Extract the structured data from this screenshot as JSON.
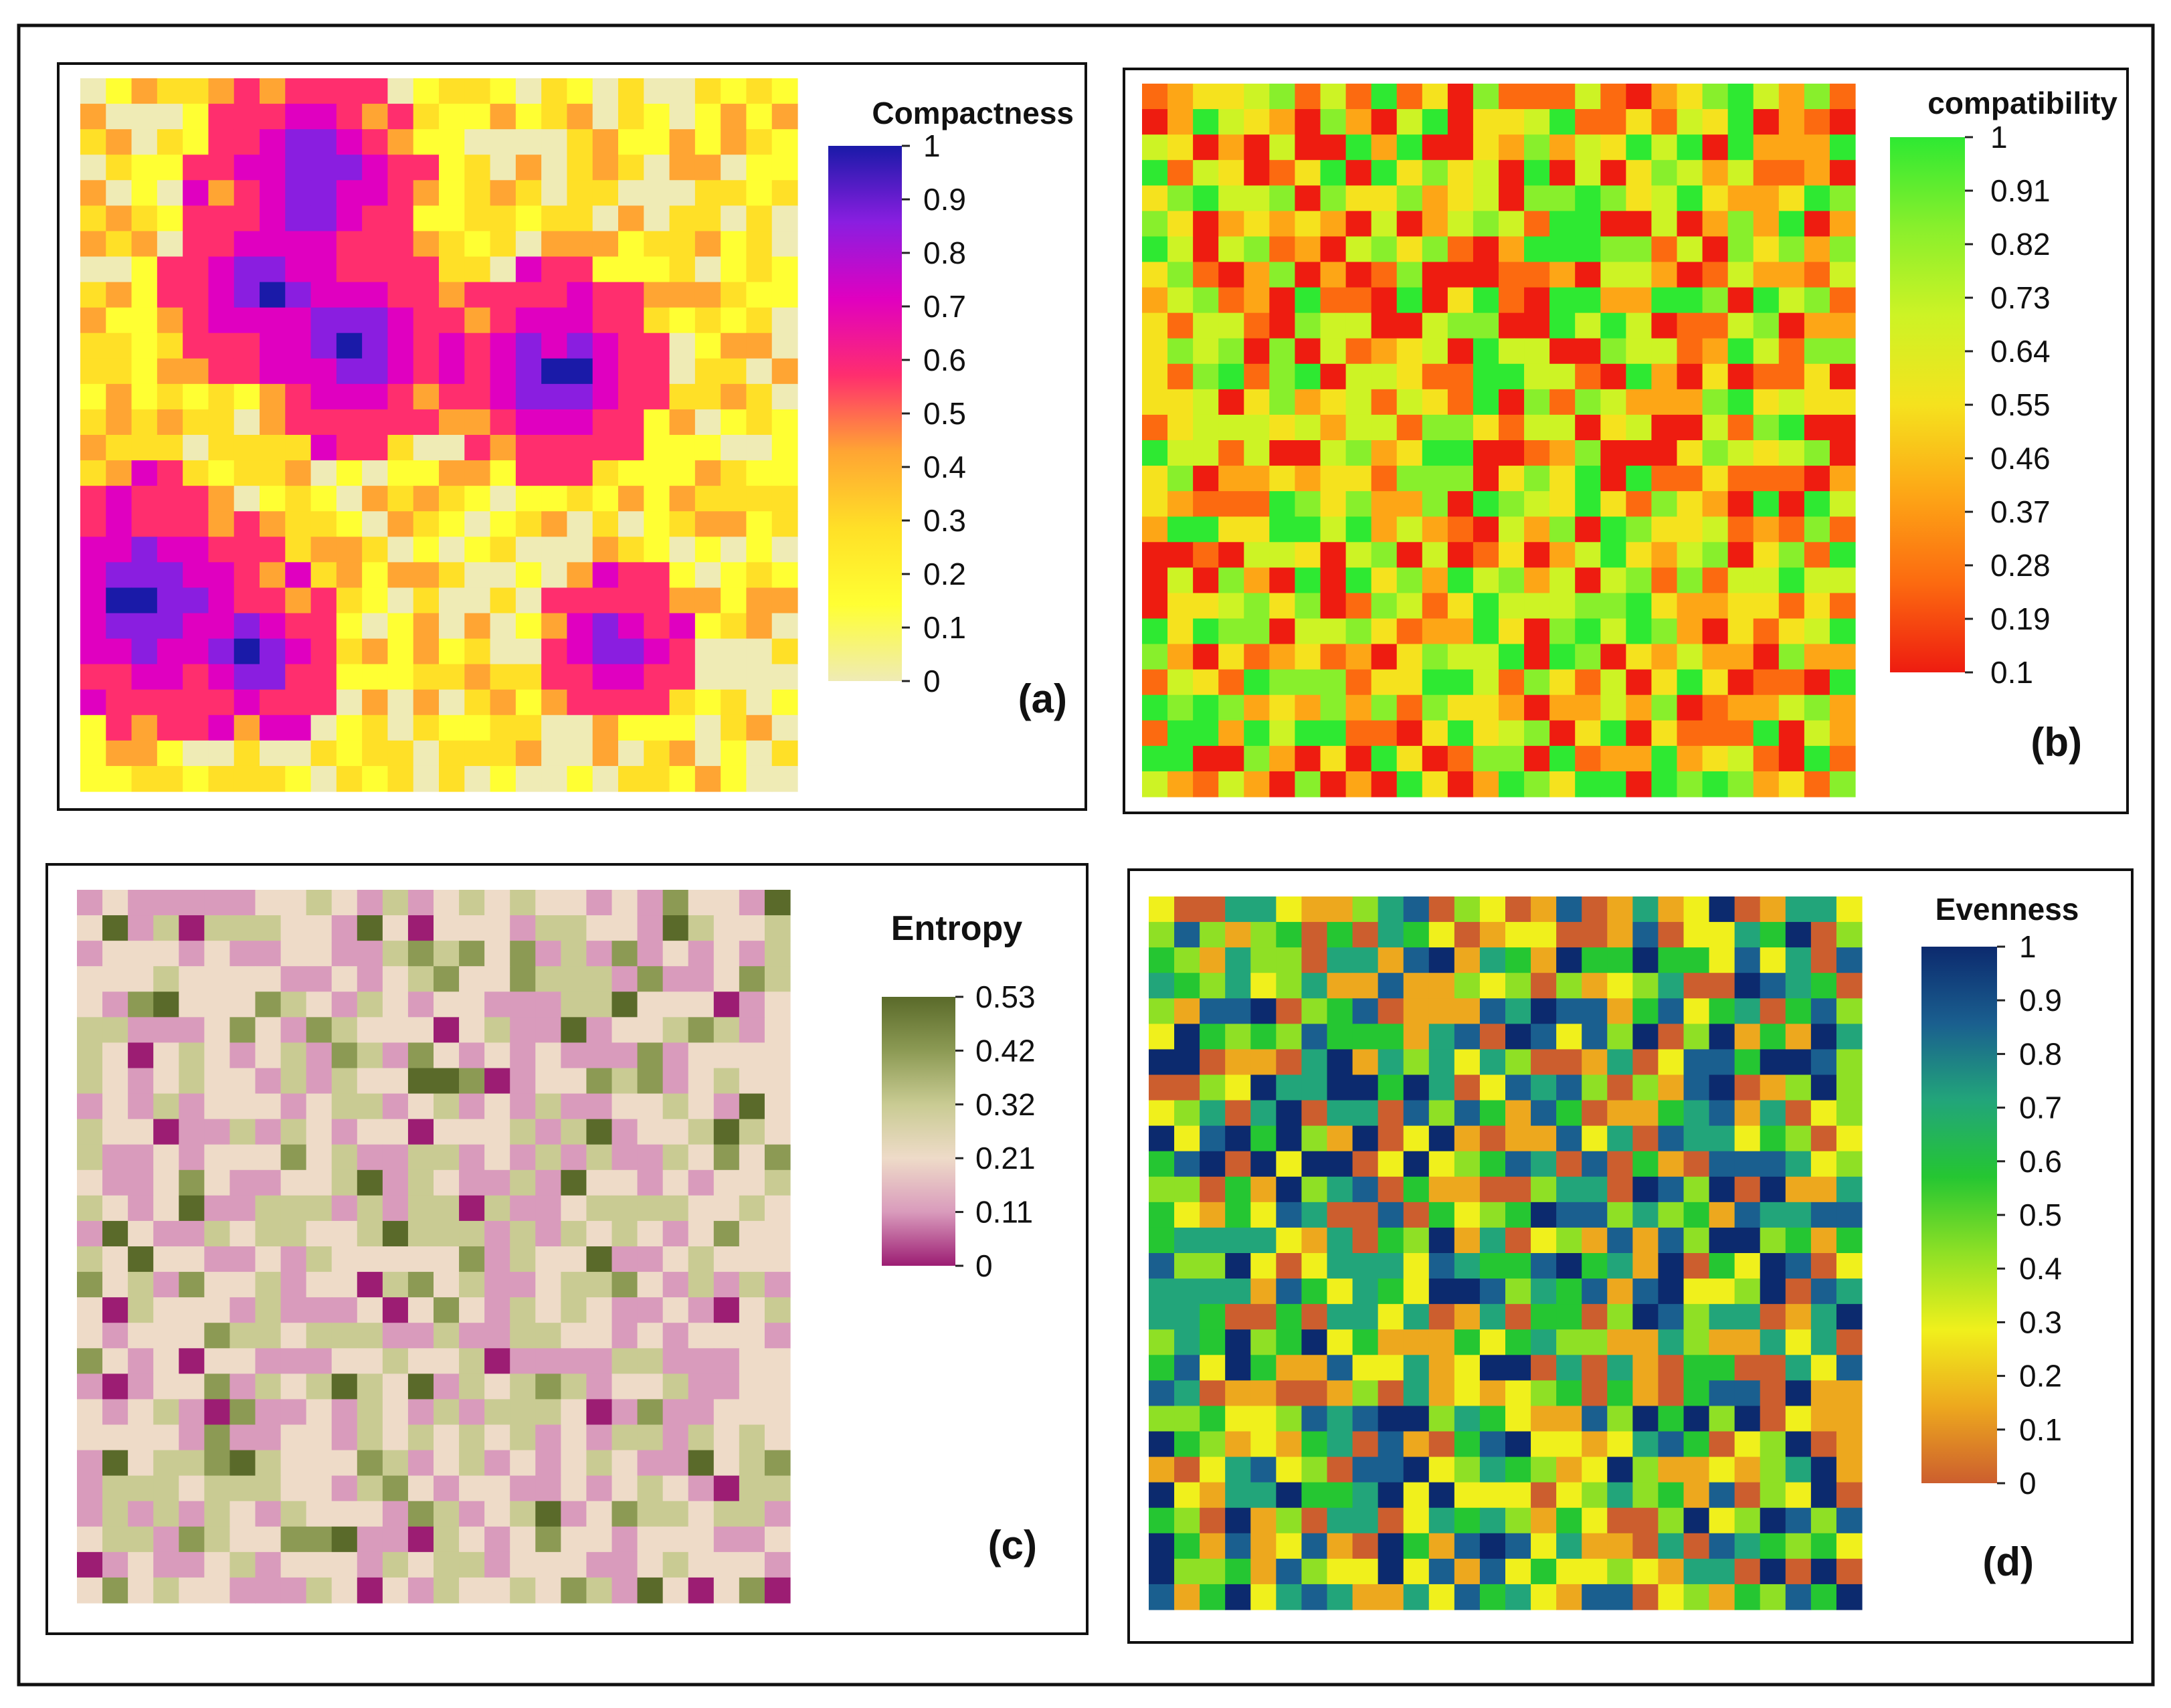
{
  "chart_data": [
    {
      "type": "heatmap",
      "panel": "(a)",
      "title": "Compactness",
      "grid": {
        "rows": 28,
        "cols": 28
      },
      "value_range": [
        0,
        1
      ],
      "colorbar_ticks": [
        "1",
        "0.9",
        "0.8",
        "0.7",
        "0.6",
        "0.5",
        "0.4",
        "0.3",
        "0.2",
        "0.1",
        "0"
      ],
      "colors": [
        "#efebb5",
        "#ffff33",
        "#ffe027",
        "#ffa533",
        "#ff2e6e",
        "#e000c0",
        "#8a1ee0",
        "#1a1aa8"
      ],
      "pattern": "clustered",
      "seed": 11
    },
    {
      "type": "heatmap",
      "panel": "(b)",
      "title": "compatibility",
      "grid": {
        "rows": 28,
        "cols": 28
      },
      "value_range": [
        0.1,
        1
      ],
      "colorbar_ticks": [
        "1",
        "0.91",
        "0.82",
        "0.73",
        "0.64",
        "0.55",
        "0.46",
        "0.37",
        "0.28",
        "0.19",
        "0.1"
      ],
      "colors": [
        "#ee1c10",
        "#fc6a10",
        "#fda616",
        "#f5e21e",
        "#cdf325",
        "#88ef2c",
        "#2ee932"
      ],
      "pattern": "random",
      "seed": 23
    },
    {
      "type": "heatmap",
      "panel": "(c)",
      "title": "Entropy",
      "grid": {
        "rows": 28,
        "cols": 28
      },
      "value_range": [
        0,
        0.53
      ],
      "colorbar_ticks": [
        "0.53",
        "0.42",
        "0.32",
        "0.21",
        "0.11",
        "0"
      ],
      "colors": [
        "#9c1d73",
        "#d99bbc",
        "#eedbc8",
        "#c9cb93",
        "#8c9a54",
        "#5a6a2a"
      ],
      "pattern": "random-light",
      "seed": 37
    },
    {
      "type": "heatmap",
      "panel": "(d)",
      "title": "Evenness",
      "grid": {
        "rows": 28,
        "cols": 28
      },
      "value_range": [
        0,
        1
      ],
      "colorbar_ticks": [
        "1",
        "0.9",
        "0.8",
        "0.7",
        "0.6",
        "0.5",
        "0.4",
        "0.3",
        "0.2",
        "0.1",
        "0"
      ],
      "colors": [
        "#cc5e2e",
        "#eda81e",
        "#f0f01c",
        "#8fe025",
        "#25c632",
        "#22a57a",
        "#1a5f8f",
        "#0c2a6e"
      ],
      "pattern": "random",
      "seed": 53
    }
  ]
}
